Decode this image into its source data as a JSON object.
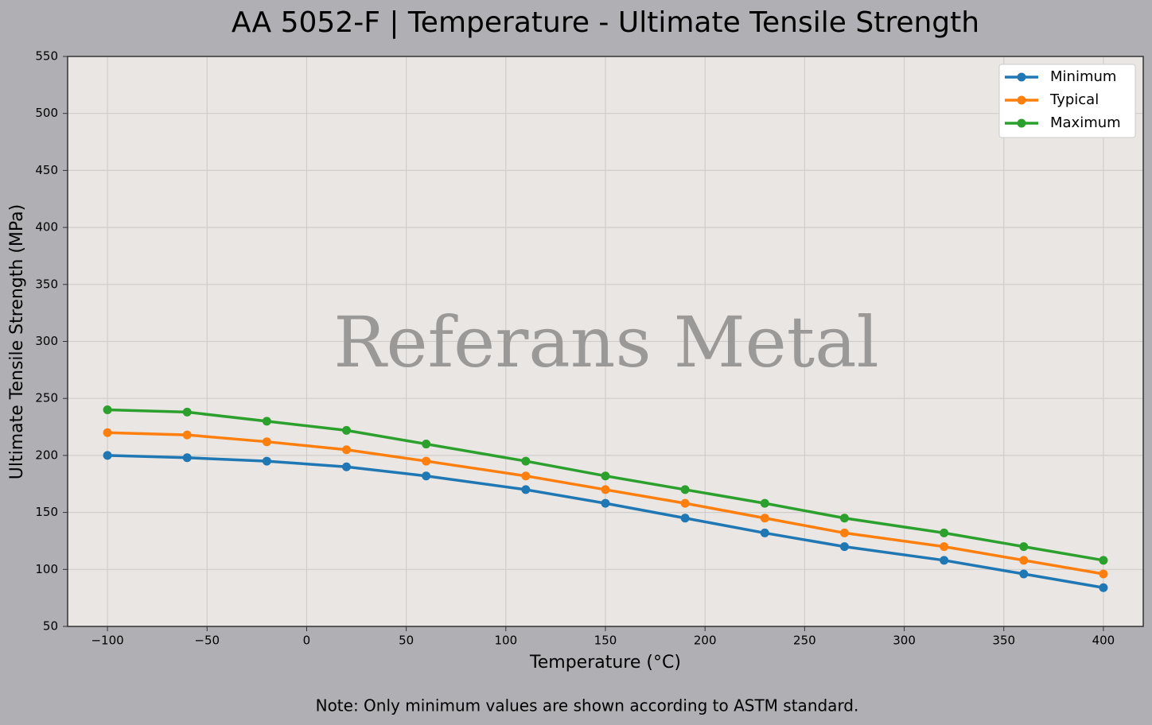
{
  "chart_data": {
    "type": "line",
    "title": "AA 5052-F | Temperature - Ultimate Tensile Strength",
    "xlabel": "Temperature (°C)",
    "ylabel": "Ultimate Tensile Strength (MPa)",
    "watermark": "Referans Metal",
    "note": "Note: Only minimum values are shown according to ASTM standard.",
    "x": [
      -100,
      -60,
      -20,
      20,
      60,
      110,
      150,
      190,
      230,
      270,
      320,
      360,
      400
    ],
    "series": [
      {
        "name": "Minimum",
        "color": "#1f77b4",
        "values": [
          200,
          198,
          195,
          190,
          182,
          170,
          158,
          145,
          132,
          120,
          108,
          96,
          84
        ]
      },
      {
        "name": "Typical",
        "color": "#ff7f0e",
        "values": [
          220,
          218,
          212,
          205,
          195,
          182,
          170,
          158,
          145,
          132,
          120,
          108,
          96
        ]
      },
      {
        "name": "Maximum",
        "color": "#2ca02c",
        "values": [
          240,
          238,
          230,
          222,
          210,
          195,
          182,
          170,
          158,
          145,
          132,
          120,
          108
        ]
      }
    ],
    "xlim": [
      -120,
      420
    ],
    "ylim": [
      50,
      550
    ],
    "xticks": [
      {
        "value": -100,
        "label": "−100"
      },
      {
        "value": -50,
        "label": "−50"
      },
      0,
      50,
      100,
      150,
      200,
      250,
      300,
      350,
      400
    ],
    "yticks": [
      50,
      100,
      150,
      200,
      250,
      300,
      350,
      400,
      450,
      500,
      550
    ],
    "grid": true,
    "legend": "upper right"
  }
}
